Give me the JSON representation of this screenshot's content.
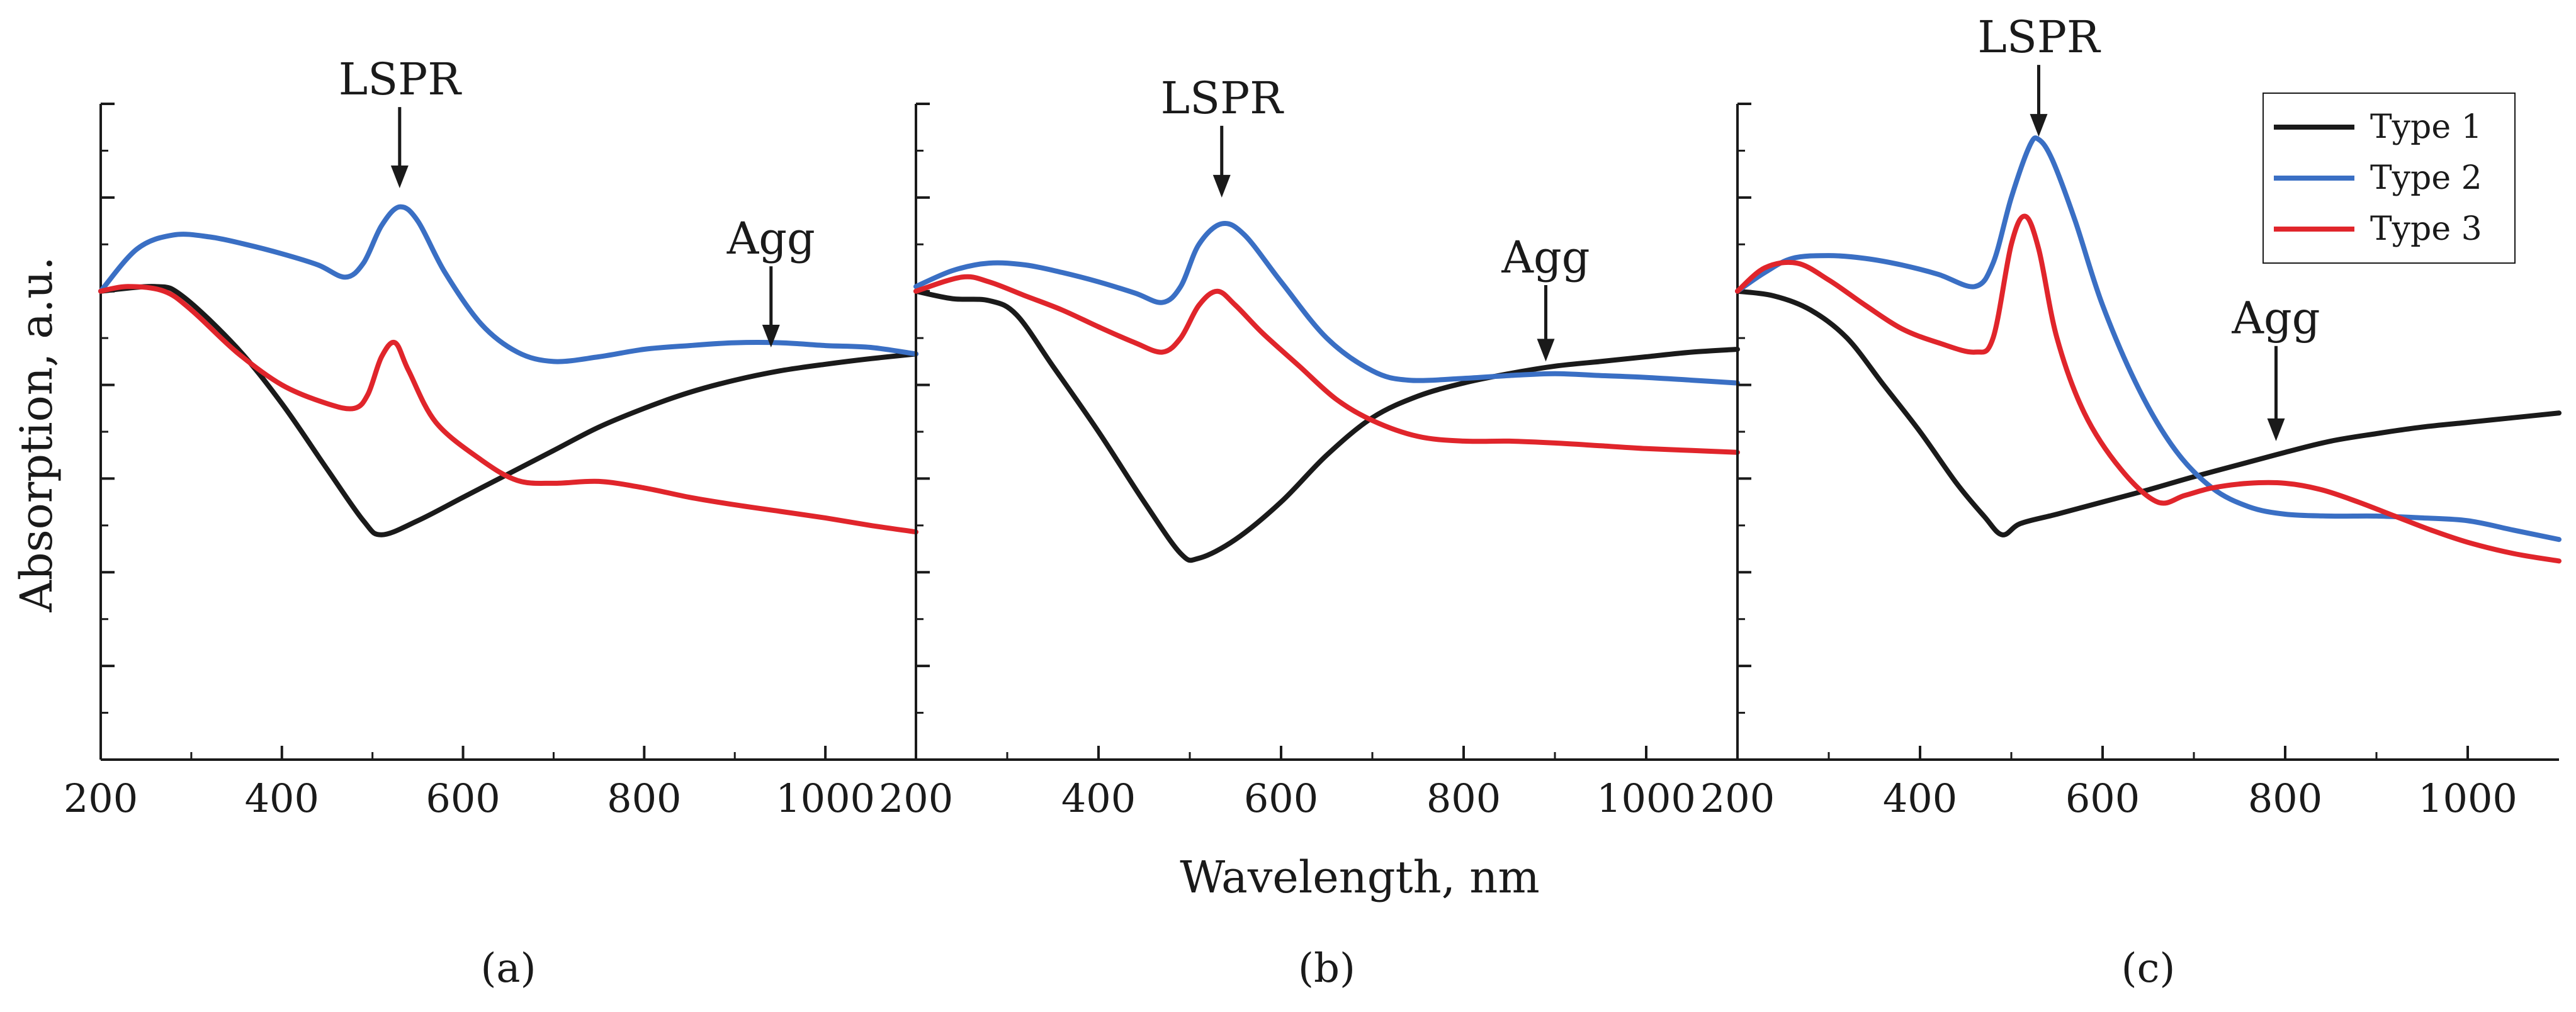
{
  "figure": {
    "ylabel": "Absorption, a.u.",
    "xlabel": "Wavelength, nm"
  },
  "legend": {
    "position": "top-right",
    "entries": [
      {
        "name": "Type 1",
        "color": "#1a1a1a"
      },
      {
        "name": "Type 2",
        "color": "#3a6fc4"
      },
      {
        "name": "Type 3",
        "color": "#e0252b"
      }
    ]
  },
  "chart_data": [
    {
      "type": "line",
      "panel_label": "(a)",
      "xlim": [
        200,
        1100
      ],
      "ylim": [
        0,
        7
      ],
      "xticks": [
        200,
        400,
        600,
        800,
        1000
      ],
      "xtick_labels": [
        "200",
        "400",
        "600",
        "800",
        "1000"
      ],
      "yticks": [
        0,
        1,
        2,
        3,
        4,
        5,
        6,
        7
      ],
      "ytick_labels": [
        "",
        "",
        "",
        "",
        "",
        "",
        "",
        ""
      ],
      "annotations": [
        {
          "text": "LSPR",
          "x": 530,
          "y_text": 7.1,
          "y_arrow_tip": 6.1
        },
        {
          "text": "Agg",
          "x": 940,
          "y_text": 5.4,
          "y_arrow_tip": 4.4
        }
      ],
      "series": [
        {
          "name": "Type 1",
          "color": "#1a1a1a",
          "x": [
            200,
            260,
            290,
            350,
            400,
            450,
            490,
            510,
            550,
            600,
            650,
            700,
            750,
            800,
            850,
            900,
            950,
            1000,
            1050,
            1100
          ],
          "y": [
            5.0,
            5.05,
            4.95,
            4.4,
            3.8,
            3.1,
            2.55,
            2.4,
            2.55,
            2.8,
            3.05,
            3.3,
            3.55,
            3.75,
            3.92,
            4.05,
            4.15,
            4.22,
            4.28,
            4.33
          ]
        },
        {
          "name": "Type 2",
          "color": "#3a6fc4",
          "x": [
            200,
            240,
            280,
            320,
            360,
            400,
            440,
            470,
            490,
            510,
            530,
            550,
            580,
            620,
            660,
            700,
            750,
            800,
            850,
            900,
            950,
            1000,
            1050,
            1100
          ],
          "y": [
            5.0,
            5.45,
            5.6,
            5.58,
            5.5,
            5.4,
            5.28,
            5.15,
            5.3,
            5.7,
            5.9,
            5.75,
            5.2,
            4.65,
            4.35,
            4.25,
            4.3,
            4.38,
            4.42,
            4.45,
            4.45,
            4.42,
            4.4,
            4.33
          ]
        },
        {
          "name": "Type 3",
          "color": "#e0252b",
          "x": [
            200,
            230,
            270,
            300,
            350,
            400,
            450,
            480,
            495,
            510,
            525,
            540,
            570,
            620,
            660,
            700,
            750,
            800,
            850,
            900,
            950,
            1000,
            1050,
            1100
          ],
          "y": [
            5.0,
            5.05,
            5.0,
            4.8,
            4.35,
            4.0,
            3.8,
            3.75,
            3.9,
            4.3,
            4.45,
            4.15,
            3.6,
            3.2,
            2.98,
            2.95,
            2.97,
            2.9,
            2.8,
            2.72,
            2.65,
            2.58,
            2.5,
            2.43
          ]
        }
      ]
    },
    {
      "type": "line",
      "panel_label": "(b)",
      "xlim": [
        200,
        1100
      ],
      "ylim": [
        0,
        7
      ],
      "xticks": [
        200,
        400,
        600,
        800,
        1000
      ],
      "xtick_labels": [
        "200",
        "400",
        "600",
        "800",
        "1000"
      ],
      "yticks": [
        0,
        1,
        2,
        3,
        4,
        5,
        6,
        7
      ],
      "ytick_labels": [
        "",
        "",
        "",
        "",
        "",
        "",
        "",
        ""
      ],
      "annotations": [
        {
          "text": "LSPR",
          "x": 535,
          "y_text": 6.9,
          "y_arrow_tip": 6.0
        },
        {
          "text": "Agg",
          "x": 890,
          "y_text": 5.2,
          "y_arrow_tip": 4.25
        }
      ],
      "series": [
        {
          "name": "Type 1",
          "color": "#1a1a1a",
          "x": [
            200,
            240,
            280,
            310,
            350,
            400,
            450,
            490,
            510,
            550,
            600,
            650,
            700,
            750,
            800,
            850,
            900,
            950,
            1000,
            1050,
            1100
          ],
          "y": [
            5.0,
            4.92,
            4.9,
            4.75,
            4.2,
            3.5,
            2.75,
            2.2,
            2.15,
            2.35,
            2.75,
            3.25,
            3.65,
            3.88,
            4.02,
            4.12,
            4.2,
            4.25,
            4.3,
            4.35,
            4.38
          ]
        },
        {
          "name": "Type 2",
          "color": "#3a6fc4",
          "x": [
            200,
            240,
            280,
            320,
            360,
            400,
            440,
            470,
            490,
            510,
            535,
            560,
            600,
            650,
            700,
            740,
            800,
            850,
            900,
            950,
            1000,
            1050,
            1100
          ],
          "y": [
            5.05,
            5.22,
            5.3,
            5.28,
            5.2,
            5.1,
            4.98,
            4.88,
            5.05,
            5.5,
            5.72,
            5.6,
            5.1,
            4.5,
            4.15,
            4.05,
            4.07,
            4.1,
            4.12,
            4.1,
            4.08,
            4.05,
            4.02
          ]
        },
        {
          "name": "Type 3",
          "color": "#e0252b",
          "x": [
            200,
            250,
            280,
            320,
            360,
            400,
            440,
            470,
            490,
            510,
            530,
            550,
            580,
            620,
            660,
            700,
            750,
            800,
            850,
            900,
            950,
            1000,
            1050,
            1100
          ],
          "y": [
            5.0,
            5.15,
            5.1,
            4.95,
            4.8,
            4.62,
            4.45,
            4.35,
            4.5,
            4.85,
            5.0,
            4.85,
            4.55,
            4.2,
            3.85,
            3.62,
            3.45,
            3.4,
            3.4,
            3.38,
            3.35,
            3.32,
            3.3,
            3.28
          ]
        }
      ]
    },
    {
      "type": "line",
      "panel_label": "(c)",
      "xlim": [
        200,
        1100
      ],
      "ylim": [
        0,
        7
      ],
      "xticks": [
        200,
        400,
        600,
        800,
        1000
      ],
      "xtick_labels": [
        "200",
        "400",
        "600",
        "800",
        "1000"
      ],
      "yticks": [
        0,
        1,
        2,
        3,
        4,
        5,
        6,
        7
      ],
      "ytick_labels": [
        "",
        "",
        "",
        "",
        "",
        "",
        "",
        ""
      ],
      "annotations": [
        {
          "text": "LSPR",
          "x": 530,
          "y_text": 7.55,
          "y_arrow_tip": 6.65
        },
        {
          "text": "Agg",
          "x": 790,
          "y_text": 4.55,
          "y_arrow_tip": 3.4
        }
      ],
      "series": [
        {
          "name": "Type 1",
          "color": "#1a1a1a",
          "x": [
            200,
            240,
            280,
            320,
            360,
            400,
            440,
            470,
            490,
            510,
            550,
            600,
            650,
            700,
            750,
            800,
            850,
            900,
            950,
            1000,
            1050,
            1100
          ],
          "y": [
            5.0,
            4.95,
            4.8,
            4.5,
            4.0,
            3.5,
            2.95,
            2.6,
            2.4,
            2.52,
            2.62,
            2.75,
            2.88,
            3.02,
            3.15,
            3.28,
            3.4,
            3.48,
            3.55,
            3.6,
            3.65,
            3.7
          ]
        },
        {
          "name": "Type 2",
          "color": "#3a6fc4",
          "x": [
            200,
            230,
            260,
            300,
            340,
            380,
            420,
            460,
            480,
            500,
            520,
            530,
            545,
            570,
            600,
            640,
            680,
            720,
            760,
            800,
            850,
            900,
            950,
            1000,
            1050,
            1100
          ],
          "y": [
            5.0,
            5.2,
            5.35,
            5.38,
            5.35,
            5.28,
            5.18,
            5.05,
            5.3,
            6.0,
            6.55,
            6.62,
            6.4,
            5.75,
            4.85,
            3.95,
            3.3,
            2.9,
            2.7,
            2.62,
            2.6,
            2.6,
            2.58,
            2.55,
            2.45,
            2.35
          ]
        },
        {
          "name": "Type 3",
          "color": "#e0252b",
          "x": [
            200,
            230,
            265,
            300,
            340,
            380,
            420,
            460,
            480,
            500,
            515,
            530,
            550,
            580,
            620,
            660,
            690,
            720,
            760,
            800,
            840,
            880,
            920,
            960,
            1000,
            1050,
            1100
          ],
          "y": [
            5.0,
            5.25,
            5.3,
            5.12,
            4.85,
            4.6,
            4.45,
            4.35,
            4.5,
            5.5,
            5.8,
            5.45,
            4.5,
            3.7,
            3.1,
            2.75,
            2.82,
            2.9,
            2.95,
            2.95,
            2.88,
            2.75,
            2.6,
            2.45,
            2.32,
            2.2,
            2.12
          ]
        }
      ]
    }
  ]
}
